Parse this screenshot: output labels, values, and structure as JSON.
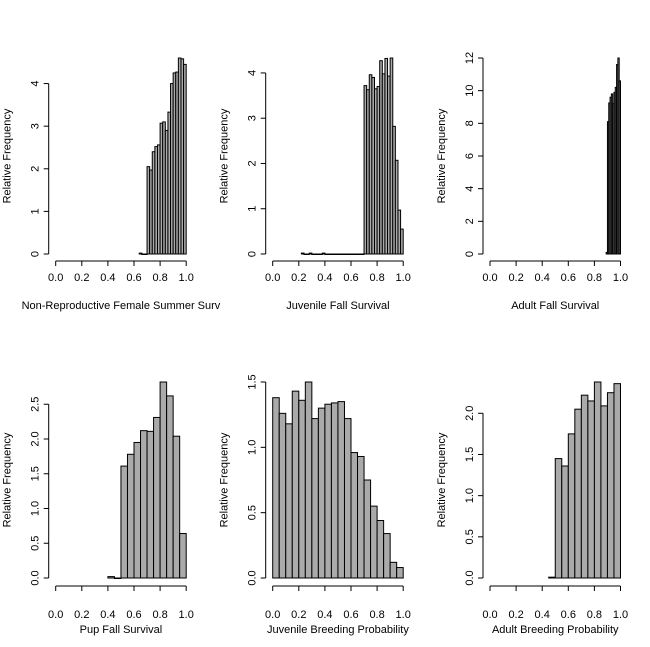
{
  "chart_data": [
    {
      "type": "bar",
      "xlabel": "Non-Reproductive Female Summer Surv",
      "ylabel": "Relative Frequency",
      "bin_start": 0.64,
      "bin_width": 0.02,
      "values": [
        0.02,
        0,
        0,
        2.05,
        1.97,
        2.4,
        2.52,
        2.56,
        3.07,
        3.1,
        2.9,
        3.33,
        4.0,
        4.25,
        4.27,
        4.6,
        4.58,
        4.45
      ],
      "xlim": [
        0,
        1
      ],
      "ylim": [
        0,
        4.6
      ],
      "xticks": [
        "0.0",
        "0.2",
        "0.4",
        "0.6",
        "0.8",
        "1.0"
      ],
      "yticks": [
        "0",
        "1",
        "2",
        "3",
        "4"
      ]
    },
    {
      "type": "bar",
      "xlabel": "Juvenile Fall Survival",
      "ylabel": "Relative Frequency",
      "bin_start": 0.22,
      "bin_width": 0.02,
      "values": [
        0.02,
        0,
        0,
        0.02,
        0,
        0,
        0,
        0,
        0.02,
        0,
        0,
        0,
        0,
        0,
        0,
        0,
        0,
        0,
        0,
        0,
        0,
        0,
        0,
        0,
        3.72,
        3.63,
        3.96,
        3.9,
        3.65,
        3.7,
        4.27,
        3.98,
        4.32,
        3.93,
        4.33,
        2.82,
        2.07,
        0.97,
        0.55
      ],
      "xlim": [
        0,
        1
      ],
      "ylim": [
        0,
        4.33
      ],
      "xticks": [
        "0.0",
        "0.2",
        "0.4",
        "0.6",
        "0.8",
        "1.0"
      ],
      "yticks": [
        "0",
        "1",
        "2",
        "3",
        "4"
      ]
    },
    {
      "type": "bar",
      "xlabel": "Adult Fall Survival",
      "ylabel": "Relative Frequency",
      "bin_start": 0.89,
      "bin_width": 0.01,
      "values": [
        0.1,
        8.1,
        9.25,
        9.6,
        9.8,
        9.2,
        9.9,
        10.2,
        11.6,
        12.0,
        10.6
      ],
      "xlim": [
        0,
        1
      ],
      "ylim": [
        0,
        12
      ],
      "xticks": [
        "0.0",
        "0.2",
        "0.4",
        "0.6",
        "0.8",
        "1.0"
      ],
      "yticks": [
        "0",
        "2",
        "4",
        "6",
        "8",
        "10",
        "12"
      ]
    },
    {
      "type": "bar",
      "xlabel": "Pup Fall Survival",
      "ylabel": "Relative Frequency",
      "bin_start": 0.4,
      "bin_width": 0.05,
      "values": [
        0.02,
        0,
        1.61,
        1.78,
        1.95,
        2.12,
        2.11,
        2.31,
        2.82,
        2.62,
        2.04,
        0.64
      ],
      "xlim": [
        0,
        1
      ],
      "ylim": [
        0,
        2.82
      ],
      "xticks": [
        "0.0",
        "0.2",
        "0.4",
        "0.6",
        "0.8",
        "1.0"
      ],
      "yticks": [
        "0.0",
        "0.5",
        "1.0",
        "1.5",
        "2.0",
        "2.5"
      ]
    },
    {
      "type": "bar",
      "xlabel": "Juvenile Breeding Probability",
      "ylabel": "Relative Frequency",
      "bin_start": 0,
      "bin_width": 0.05,
      "values": [
        1.38,
        1.26,
        1.18,
        1.43,
        1.36,
        1.5,
        1.22,
        1.3,
        1.33,
        1.34,
        1.35,
        1.22,
        0.96,
        0.93,
        0.75,
        0.55,
        0.44,
        0.34,
        0.12,
        0.08
      ],
      "xlim": [
        0,
        1
      ],
      "ylim": [
        0,
        1.5
      ],
      "xticks": [
        "0.0",
        "0.2",
        "0.4",
        "0.6",
        "0.8",
        "1.0"
      ],
      "yticks": [
        "0.0",
        "0.5",
        "1.0",
        "1.5"
      ]
    },
    {
      "type": "bar",
      "xlabel": "Adult Breeding Probability",
      "ylabel": "Relative Frequency",
      "bin_start": 0.45,
      "bin_width": 0.05,
      "values": [
        0.01,
        1.45,
        1.36,
        1.75,
        2.05,
        2.22,
        2.15,
        2.38,
        2.09,
        2.25,
        2.36
      ],
      "xlim": [
        0,
        1
      ],
      "ylim": [
        0,
        2.38
      ],
      "xticks": [
        "0.0",
        "0.2",
        "0.4",
        "0.6",
        "0.8",
        "1.0"
      ],
      "yticks": [
        "0.0",
        "0.5",
        "1.0",
        "1.5",
        "2.0"
      ]
    }
  ]
}
